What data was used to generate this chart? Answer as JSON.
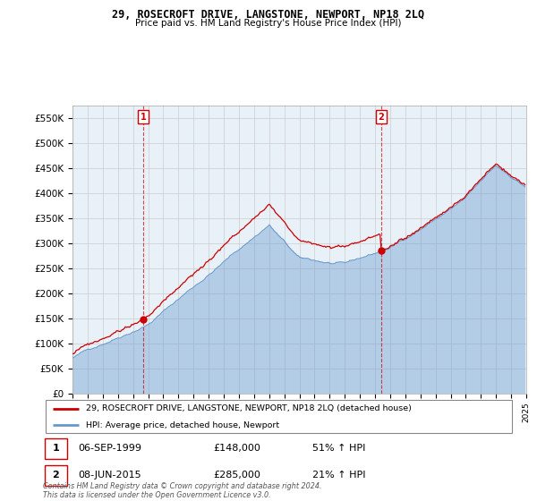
{
  "title": "29, ROSECROFT DRIVE, LANGSTONE, NEWPORT, NP18 2LQ",
  "subtitle": "Price paid vs. HM Land Registry's House Price Index (HPI)",
  "ylim": [
    0,
    575000
  ],
  "yticks": [
    0,
    50000,
    100000,
    150000,
    200000,
    250000,
    300000,
    350000,
    400000,
    450000,
    500000,
    550000
  ],
  "ytick_labels": [
    "£0",
    "£50K",
    "£100K",
    "£150K",
    "£200K",
    "£250K",
    "£300K",
    "£350K",
    "£400K",
    "£450K",
    "£500K",
    "£550K"
  ],
  "red_line_color": "#cc0000",
  "blue_line_color": "#6699cc",
  "background_color": "#ffffff",
  "grid_color": "#cccccc",
  "legend_label_red": "29, ROSECROFT DRIVE, LANGSTONE, NEWPORT, NP18 2LQ (detached house)",
  "legend_label_blue": "HPI: Average price, detached house, Newport",
  "annotation1_label": "1",
  "annotation1_date": "06-SEP-1999",
  "annotation1_price": "£148,000",
  "annotation1_hpi": "51% ↑ HPI",
  "annotation2_label": "2",
  "annotation2_date": "08-JUN-2015",
  "annotation2_price": "£285,000",
  "annotation2_hpi": "21% ↑ HPI",
  "footnote": "Contains HM Land Registry data © Crown copyright and database right 2024.\nThis data is licensed under the Open Government Licence v3.0.",
  "sale1_year": 1999.67,
  "sale1_price": 148000,
  "sale2_year": 2015.42,
  "sale2_price": 285000
}
